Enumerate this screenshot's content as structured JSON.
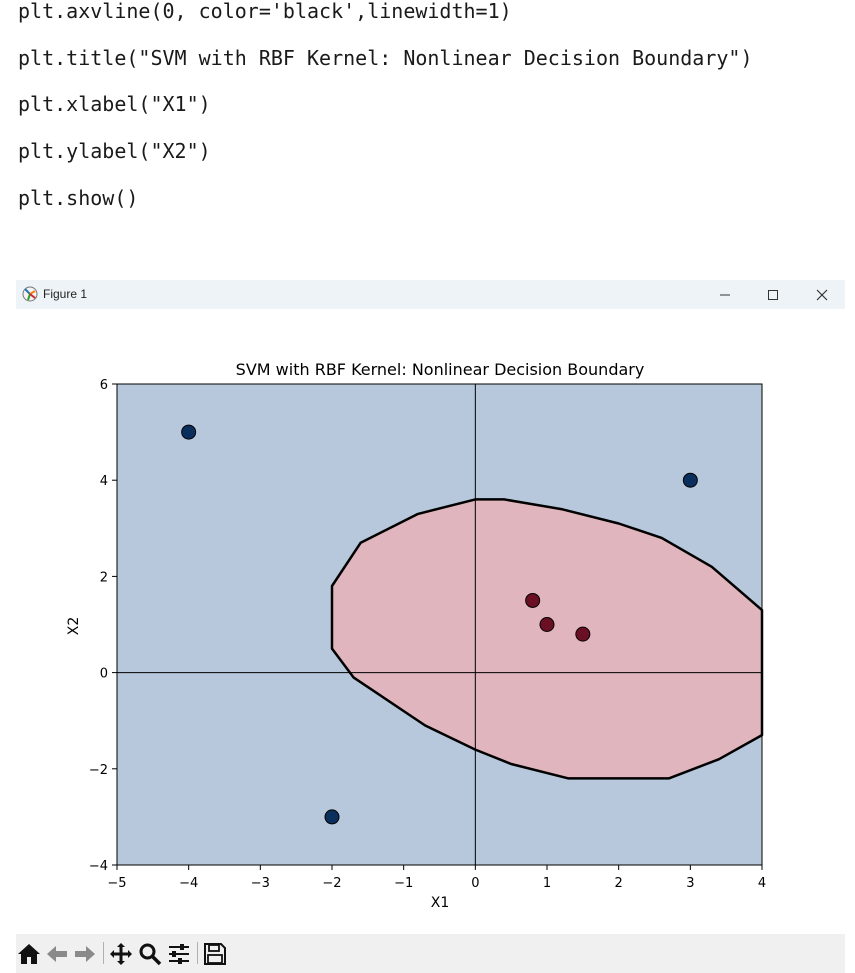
{
  "code_lines": [
    "plt.axvline(0, color='black',linewidth=1)",
    "plt.title(\"SVM with RBF Kernel: Nonlinear Decision Boundary\")",
    "plt.xlabel(\"X1\")",
    "plt.ylabel(\"X2\")",
    "plt.show()"
  ],
  "window": {
    "title": "Figure 1",
    "icons": [
      "matplotlib-icon",
      "minimize-icon",
      "maximize-icon",
      "close-icon"
    ]
  },
  "toolbar": {
    "icons": [
      "home-icon",
      "back-icon",
      "forward-icon",
      "pan-icon",
      "zoom-icon",
      "configure-icon",
      "save-icon"
    ]
  },
  "colors": {
    "class_neg_region": "#b8c8dc",
    "class_pos_region": "#e1b5bd",
    "class_neg_point": "#0b2f5c",
    "class_pos_point": "#6a0f24",
    "boundary": "#000000"
  },
  "chart_data": {
    "type": "scatter",
    "title": "SVM with RBF Kernel: Nonlinear Decision Boundary",
    "xlabel": "X1",
    "ylabel": "X2",
    "xlim": [
      -5,
      4
    ],
    "ylim": [
      -4,
      6
    ],
    "xticks": [
      "−5",
      "−4",
      "−3",
      "−2",
      "−1",
      "0",
      "1",
      "2",
      "3",
      "4"
    ],
    "yticks": [
      "−4",
      "−2",
      "0",
      "2",
      "4",
      "6"
    ],
    "grid": false,
    "reference_lines": {
      "axhline": 0,
      "axvline": 0
    },
    "points": [
      {
        "x": -4,
        "y": 5,
        "class": 0
      },
      {
        "x": 3,
        "y": 4,
        "class": 0
      },
      {
        "x": -2,
        "y": -3,
        "class": 0
      },
      {
        "x": 0.8,
        "y": 1.5,
        "class": 1
      },
      {
        "x": 1.0,
        "y": 1.0,
        "class": 1
      },
      {
        "x": 1.5,
        "y": 0.8,
        "class": 1
      }
    ],
    "decision_boundary": [
      [
        0.0,
        3.6
      ],
      [
        0.4,
        3.6
      ],
      [
        1.2,
        3.4
      ],
      [
        2.0,
        3.1
      ],
      [
        2.6,
        2.8
      ],
      [
        3.3,
        2.2
      ],
      [
        4.0,
        1.3
      ],
      [
        4.0,
        -1.3
      ],
      [
        3.4,
        -1.8
      ],
      [
        2.7,
        -2.2
      ],
      [
        1.3,
        -2.2
      ],
      [
        0.5,
        -1.9
      ],
      [
        0.0,
        -1.6
      ],
      [
        -0.7,
        -1.1
      ],
      [
        -1.7,
        -0.1
      ],
      [
        -2.0,
        0.5
      ],
      [
        -2.0,
        1.8
      ],
      [
        -1.6,
        2.7
      ],
      [
        -0.8,
        3.3
      ]
    ]
  }
}
